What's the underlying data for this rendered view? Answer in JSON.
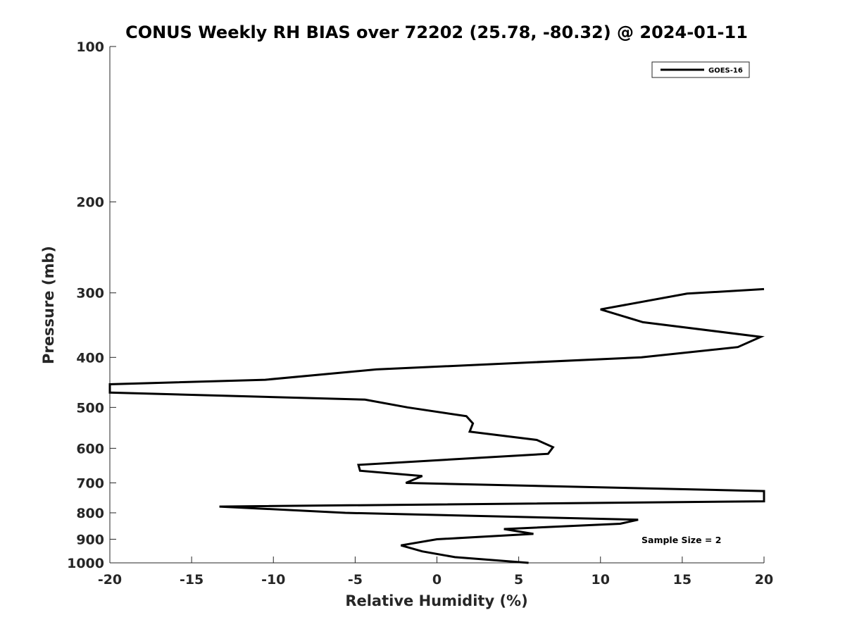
{
  "chart_data": {
    "type": "line",
    "title": "CONUS Weekly RH BIAS over 72202 (25.78, -80.32) @ 2024-01-11",
    "xlabel": "Relative Humidity (%)",
    "ylabel": "Pressure (mb)",
    "xlim": [
      -20,
      20
    ],
    "ylim": [
      100,
      1000
    ],
    "yscale": "log",
    "y_reversed": true,
    "grid": false,
    "xticks": [
      -20,
      -15,
      -10,
      -5,
      0,
      5,
      10,
      15,
      20
    ],
    "xtick_labels": [
      "-20",
      "-15",
      "-10",
      "-5",
      "0",
      "5",
      "10",
      "15",
      "20"
    ],
    "yticks": [
      100,
      200,
      300,
      400,
      500,
      600,
      700,
      800,
      900,
      1000
    ],
    "ytick_labels": [
      "100",
      "200",
      "300",
      "400",
      "500",
      "600",
      "700",
      "800",
      "900",
      "1000"
    ],
    "legend": {
      "placement": "top-right",
      "entries": [
        "GOES-16"
      ]
    },
    "annotation": "Sample Size = 2",
    "series": [
      {
        "name": "GOES-16",
        "color": "#000000",
        "x": [
          20,
          15.3,
          10.0,
          12.6,
          19.8,
          18.4,
          12.5,
          -3.7,
          -10.5,
          -20,
          -20,
          -4.4,
          -1.8,
          1.8,
          2.2,
          2.0,
          6.1,
          7.1,
          6.8,
          -4.8,
          -4.7,
          -0.9,
          -1.9,
          20,
          20,
          -13.3,
          -5.6,
          12.3,
          11.2,
          4.1,
          5.9,
          0.0,
          -2.2,
          -0.9,
          1.1,
          5.6
        ],
        "y": [
          295,
          301,
          323,
          342,
          365,
          382,
          400,
          422,
          442,
          451,
          468,
          483,
          500,
          520,
          537,
          557,
          578,
          597,
          615,
          646,
          663,
          679,
          700,
          726,
          760,
          778,
          800,
          825,
          840,
          860,
          879,
          900,
          925,
          950,
          975,
          1000
        ]
      }
    ]
  }
}
